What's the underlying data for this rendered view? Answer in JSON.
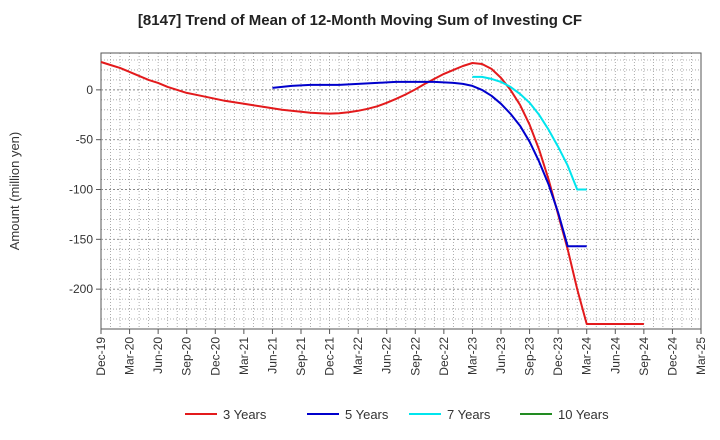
{
  "chart_data": {
    "type": "line",
    "title": "[8147]  Trend of Mean of 12-Month Moving Sum of Investing CF",
    "xlabel": "",
    "ylabel": "Amount (million yen)",
    "ylim": [
      -240,
      37
    ],
    "yticks": [
      0,
      -50,
      -100,
      -150,
      -200
    ],
    "x_tick_labels": [
      "Dec-19",
      "Mar-20",
      "Jun-20",
      "Sep-20",
      "Dec-20",
      "Mar-21",
      "Jun-21",
      "Sep-21",
      "Dec-21",
      "Mar-22",
      "Jun-22",
      "Sep-22",
      "Dec-22",
      "Mar-23",
      "Jun-23",
      "Sep-23",
      "Dec-23",
      "Mar-24",
      "Jun-24",
      "Sep-24",
      "Dec-24",
      "Mar-25"
    ],
    "x_range_months": [
      0,
      63
    ],
    "grid": true,
    "legend_position": "bottom",
    "series": [
      {
        "name": "3 Years",
        "color": "#e31a1c",
        "x": [
          0,
          1,
          2,
          3,
          4,
          5,
          6,
          7,
          8,
          9,
          10,
          11,
          12,
          13,
          14,
          15,
          16,
          17,
          18,
          19,
          20,
          21,
          22,
          23,
          24,
          25,
          26,
          27,
          28,
          29,
          30,
          31,
          32,
          33,
          34,
          35,
          36,
          37,
          38,
          39,
          40,
          41,
          42,
          43,
          44,
          45,
          46,
          47,
          48,
          49,
          50,
          51,
          52,
          53,
          54,
          55,
          56,
          57
        ],
        "values": [
          28,
          25,
          22,
          18,
          14,
          10,
          7,
          3,
          0,
          -3,
          -5,
          -7,
          -9,
          -11,
          -12.5,
          -14,
          -15.5,
          -17,
          -18.5,
          -20,
          -21,
          -22,
          -23,
          -23.5,
          -23.8,
          -23.5,
          -22.5,
          -21,
          -19,
          -16.5,
          -13,
          -9,
          -4.5,
          0.5,
          6,
          11,
          16,
          20,
          24,
          27,
          26,
          21,
          12,
          0,
          -15,
          -35,
          -60,
          -90,
          -125,
          -160,
          -200,
          -235,
          -235,
          -235,
          -235,
          -235,
          -235,
          -235
        ]
      },
      {
        "name": "5 Years",
        "color": "#0000cc",
        "x": [
          18,
          19,
          20,
          21,
          22,
          23,
          24,
          25,
          26,
          27,
          28,
          29,
          30,
          31,
          32,
          33,
          34,
          35,
          36,
          37,
          38,
          39,
          40,
          41,
          42,
          43,
          44,
          45,
          46,
          47,
          48,
          49,
          50,
          51
        ],
        "values": [
          2,
          3,
          4,
          4.5,
          5,
          5,
          5,
          5,
          5.5,
          6,
          6.5,
          7,
          7.5,
          8,
          8,
          8,
          8,
          8,
          7.5,
          7,
          6,
          4,
          0,
          -6,
          -14,
          -24,
          -36,
          -52,
          -72,
          -95,
          -123,
          -157,
          -157,
          -157
        ]
      },
      {
        "name": "7 Years",
        "color": "#00e5ee",
        "x": [
          39,
          40,
          41,
          42,
          43,
          44,
          45,
          46,
          47,
          48,
          49,
          50,
          51
        ],
        "values": [
          13,
          13,
          11,
          8,
          3,
          -4,
          -13,
          -25,
          -40,
          -57,
          -76,
          -100,
          -100
        ]
      },
      {
        "name": "10 Years",
        "color": "#228b22",
        "x": [],
        "values": []
      }
    ]
  }
}
